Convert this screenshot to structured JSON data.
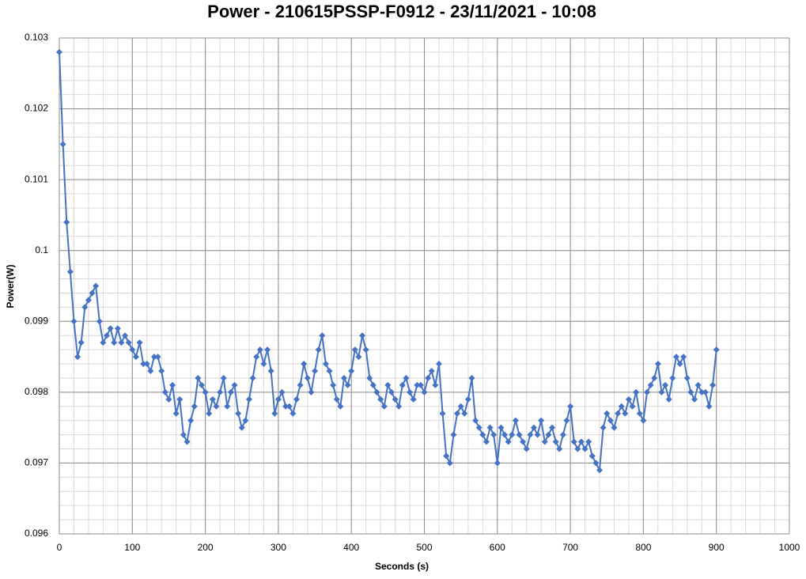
{
  "chart_data": {
    "type": "line",
    "title": "Power - 210615PSSP-F0912  - 23/11/2021 - 10:08",
    "x_label": "Seconds (s)",
    "y_label": "Power(W)",
    "x": [
      0,
      5,
      10,
      15,
      20,
      25,
      30,
      35,
      40,
      45,
      50,
      55,
      60,
      65,
      70,
      75,
      80,
      85,
      90,
      95,
      100,
      105,
      110,
      115,
      120,
      125,
      130,
      135,
      140,
      145,
      150,
      155,
      160,
      165,
      170,
      175,
      180,
      185,
      190,
      195,
      200,
      205,
      210,
      215,
      220,
      225,
      230,
      235,
      240,
      245,
      250,
      255,
      260,
      265,
      270,
      275,
      280,
      285,
      290,
      295,
      300,
      305,
      310,
      315,
      320,
      325,
      330,
      335,
      340,
      345,
      350,
      355,
      360,
      365,
      370,
      375,
      380,
      385,
      390,
      395,
      400,
      405,
      410,
      415,
      420,
      425,
      430,
      435,
      440,
      445,
      450,
      455,
      460,
      465,
      470,
      475,
      480,
      485,
      490,
      495,
      500,
      505,
      510,
      515,
      520,
      525,
      530,
      535,
      540,
      545,
      550,
      555,
      560,
      565,
      570,
      575,
      580,
      585,
      590,
      595,
      600,
      605,
      610,
      615,
      620,
      625,
      630,
      635,
      640,
      645,
      650,
      655,
      660,
      665,
      670,
      675,
      680,
      685,
      690,
      695,
      700,
      705,
      710,
      715,
      720,
      725,
      730,
      735,
      740,
      745,
      750,
      755,
      760,
      765,
      770,
      775,
      780,
      785,
      790,
      795,
      800,
      805,
      810,
      815,
      820,
      825,
      830,
      835,
      840,
      845,
      850,
      855,
      860,
      865,
      870,
      875,
      880,
      885,
      890,
      895,
      900
    ],
    "series": [
      {
        "name": "Power",
        "color": "#4472c4",
        "values": [
          0.1028,
          0.1015,
          0.1004,
          0.0997,
          0.099,
          0.0985,
          0.0987,
          0.0992,
          0.0993,
          0.0994,
          0.0995,
          0.099,
          0.0987,
          0.0988,
          0.0989,
          0.0987,
          0.0989,
          0.0987,
          0.0988,
          0.0987,
          0.0986,
          0.0985,
          0.0987,
          0.0984,
          0.0984,
          0.0983,
          0.0985,
          0.0985,
          0.0983,
          0.098,
          0.0979,
          0.0981,
          0.0977,
          0.0979,
          0.0974,
          0.0973,
          0.0976,
          0.0978,
          0.0982,
          0.0981,
          0.098,
          0.0977,
          0.0979,
          0.0978,
          0.098,
          0.0982,
          0.0978,
          0.098,
          0.0981,
          0.0977,
          0.0975,
          0.0976,
          0.0979,
          0.0982,
          0.0985,
          0.0986,
          0.0984,
          0.0986,
          0.0983,
          0.0977,
          0.0979,
          0.098,
          0.0978,
          0.0978,
          0.0977,
          0.0979,
          0.0981,
          0.0984,
          0.0982,
          0.098,
          0.0983,
          0.0986,
          0.0988,
          0.0984,
          0.0983,
          0.0981,
          0.0979,
          0.0978,
          0.0982,
          0.0981,
          0.0983,
          0.0986,
          0.0985,
          0.0988,
          0.0986,
          0.0982,
          0.0981,
          0.098,
          0.0979,
          0.0978,
          0.0981,
          0.098,
          0.0979,
          0.0978,
          0.0981,
          0.0982,
          0.098,
          0.0979,
          0.0981,
          0.0981,
          0.098,
          0.0982,
          0.0983,
          0.0981,
          0.0984,
          0.0977,
          0.0971,
          0.097,
          0.0974,
          0.0977,
          0.0978,
          0.0977,
          0.0979,
          0.0982,
          0.0976,
          0.0975,
          0.0974,
          0.0973,
          0.0975,
          0.0974,
          0.097,
          0.0975,
          0.0974,
          0.0973,
          0.0974,
          0.0976,
          0.0974,
          0.0973,
          0.0972,
          0.0974,
          0.0975,
          0.0974,
          0.0976,
          0.0973,
          0.0974,
          0.0975,
          0.0973,
          0.0972,
          0.0974,
          0.0976,
          0.0978,
          0.0973,
          0.0972,
          0.0973,
          0.0972,
          0.0973,
          0.0971,
          0.097,
          0.0969,
          0.0975,
          0.0977,
          0.0976,
          0.0975,
          0.0977,
          0.0978,
          0.0977,
          0.0979,
          0.0978,
          0.098,
          0.0977,
          0.0976,
          0.098,
          0.0981,
          0.0982,
          0.0984,
          0.098,
          0.0981,
          0.0979,
          0.0982,
          0.0985,
          0.0984,
          0.0985,
          0.0982,
          0.098,
          0.0979,
          0.0981,
          0.098,
          0.098,
          0.0978,
          0.0981,
          0.0986
        ]
      }
    ],
    "xlim": [
      0,
      1000
    ],
    "xticks": [
      0,
      100,
      200,
      300,
      400,
      500,
      600,
      700,
      800,
      900,
      1000
    ],
    "ylim": [
      0.096,
      0.103
    ],
    "yticks": [
      0.096,
      0.097,
      0.098,
      0.099,
      0.1,
      0.101,
      0.102,
      0.103
    ],
    "grid": true,
    "minor_grid": {
      "x": 20,
      "y": 0.0002
    },
    "marker": "diamond"
  }
}
